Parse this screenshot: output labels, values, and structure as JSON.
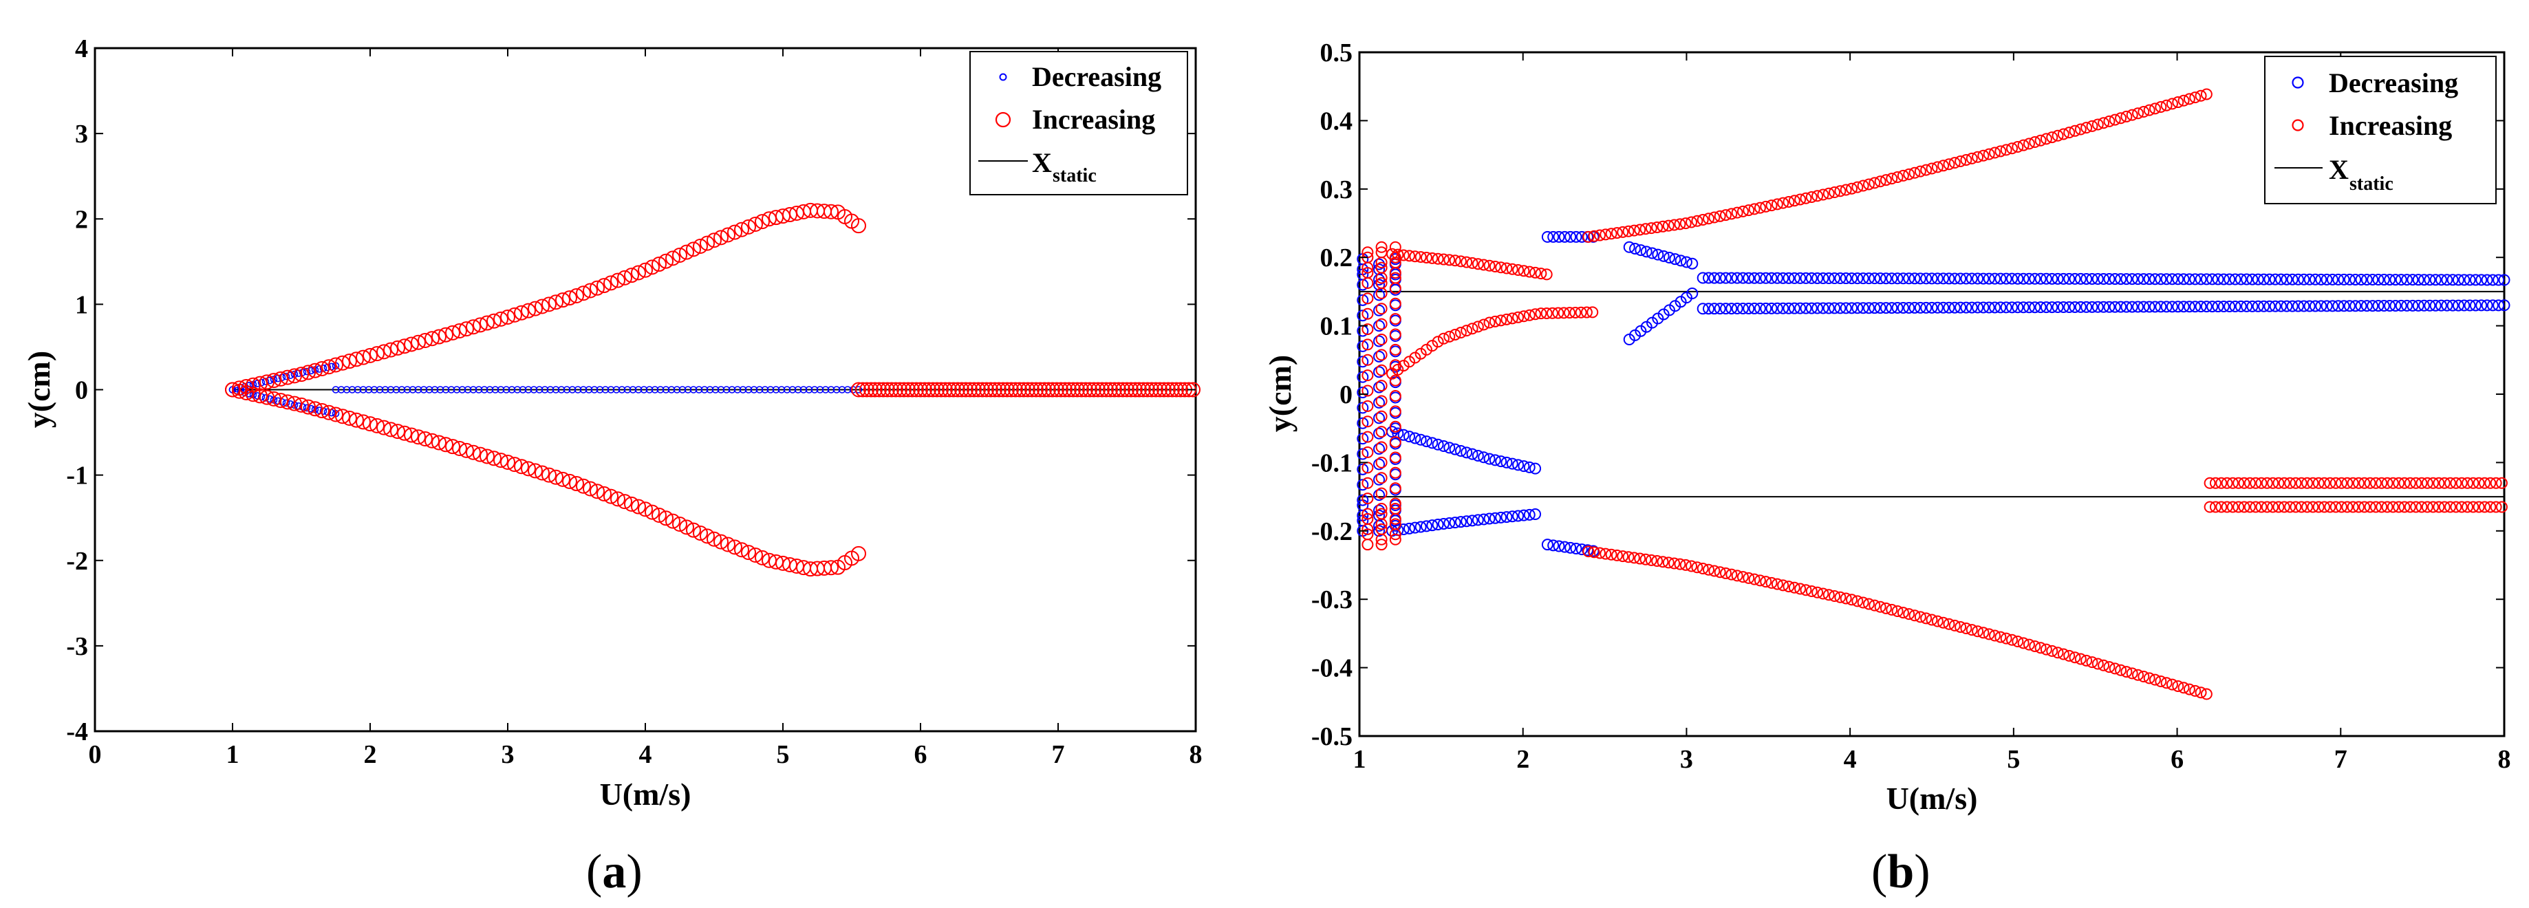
{
  "chart_data": [
    {
      "type": "scatter",
      "caption": "a",
      "xlabel": "U(m/s)",
      "ylabel": "y(cm)",
      "xlim": [
        0,
        8
      ],
      "ylim": [
        -4,
        4
      ],
      "xticks": [
        "0",
        "1",
        "2",
        "3",
        "4",
        "5",
        "6",
        "7",
        "8"
      ],
      "yticks": [
        "-4",
        "-3",
        "-2",
        "-1",
        "0",
        "1",
        "2",
        "3",
        "4"
      ],
      "legend": {
        "position": "top-right",
        "entries": [
          {
            "label": "Decreasing",
            "marker": "small-circle",
            "color": "#0000ff"
          },
          {
            "label": "Increasing",
            "marker": "circle",
            "color": "#ff0000"
          },
          {
            "label": "X",
            "sub": "static",
            "marker": "line",
            "color": "#000000"
          }
        ]
      },
      "series": [
        {
          "name": "Decreasing",
          "color": "#0000ff",
          "branches": [
            {
              "x_start": 1.0,
              "x_end": 1.75,
              "step": 0.03,
              "amplitude_at": [
                [
                  1.0,
                  0.0
                ],
                [
                  1.3,
                  0.12
                ],
                [
                  1.5,
                  0.2
                ],
                [
                  1.75,
                  0.28
                ]
              ],
              "symmetric": true
            },
            {
              "x_start": 1.75,
              "x_end": 5.55,
              "step": 0.04,
              "y_values": [
                0.0,
                0.05,
                -0.05
              ]
            }
          ]
        },
        {
          "name": "Increasing",
          "color": "#ff0000",
          "branches": [
            {
              "x_start": 1.0,
              "x_end": 5.55,
              "step": 0.05,
              "amplitude_at": [
                [
                  1.0,
                  0.0
                ],
                [
                  1.5,
                  0.18
                ],
                [
                  2.0,
                  0.4
                ],
                [
                  2.5,
                  0.62
                ],
                [
                  3.0,
                  0.85
                ],
                [
                  3.5,
                  1.1
                ],
                [
                  4.0,
                  1.4
                ],
                [
                  4.5,
                  1.75
                ],
                [
                  4.9,
                  2.0
                ],
                [
                  5.2,
                  2.1
                ],
                [
                  5.4,
                  2.08
                ],
                [
                  5.55,
                  1.92
                ]
              ],
              "symmetric": true
            },
            {
              "x_start": 5.55,
              "x_end": 8.0,
              "step": 0.03,
              "y_values": [
                0.0
              ]
            }
          ]
        }
      ],
      "reference_line": {
        "name": "X_static",
        "y": 0.0,
        "x_range": [
          1.0,
          8.0
        ],
        "color": "#000000"
      }
    },
    {
      "type": "scatter",
      "caption": "b",
      "xlabel": "U(m/s)",
      "ylabel": "y(cm)",
      "xlim": [
        1,
        8
      ],
      "ylim": [
        -0.5,
        0.5
      ],
      "xticks": [
        "1",
        "2",
        "3",
        "4",
        "5",
        "6",
        "7",
        "8"
      ],
      "yticks": [
        "-0.5",
        "-0.4",
        "-0.3",
        "-0.2",
        "-0.1",
        "0",
        "0.1",
        "0.2",
        "0.3",
        "0.4",
        "0.5"
      ],
      "legend": {
        "position": "top-right",
        "entries": [
          {
            "label": "Decreasing",
            "marker": "circle",
            "color": "#0000ff"
          },
          {
            "label": "Increasing",
            "marker": "circle",
            "color": "#ff0000"
          },
          {
            "label": "X",
            "sub": "static",
            "marker": "line",
            "color": "#000000"
          }
        ]
      },
      "series": [
        {
          "name": "Decreasing",
          "color": "#0000ff",
          "branches": [
            {
              "x_range": [
                1.2,
                2.1
              ],
              "y_points": [
                [
                  1.2,
                  -0.055
                ],
                [
                  1.5,
                  -0.075
                ],
                [
                  1.8,
                  -0.095
                ],
                [
                  2.1,
                  -0.11
                ]
              ]
            },
            {
              "x_range": [
                1.2,
                2.1
              ],
              "y_points": [
                [
                  1.2,
                  -0.2
                ],
                [
                  1.5,
                  -0.19
                ],
                [
                  1.8,
                  -0.182
                ],
                [
                  2.1,
                  -0.175
                ]
              ]
            },
            {
              "x_range": [
                2.15,
                2.45
              ],
              "y_points": [
                [
                  2.15,
                  0.23
                ],
                [
                  2.45,
                  0.23
                ]
              ]
            },
            {
              "x_range": [
                2.15,
                2.45
              ],
              "y_points": [
                [
                  2.15,
                  -0.22
                ],
                [
                  2.45,
                  -0.23
                ]
              ]
            },
            {
              "x_range": [
                2.65,
                3.05
              ],
              "y_points": [
                [
                  2.65,
                  0.215
                ],
                [
                  3.05,
                  0.19
                ]
              ]
            },
            {
              "x_range": [
                2.65,
                3.05
              ],
              "y_points": [
                [
                  2.65,
                  0.08
                ],
                [
                  3.05,
                  0.15
                ]
              ]
            },
            {
              "x_range": [
                3.1,
                8.0
              ],
              "y_points": [
                [
                  3.1,
                  0.17
                ],
                [
                  8.0,
                  0.167
                ]
              ]
            },
            {
              "x_range": [
                3.1,
                8.0
              ],
              "y_points": [
                [
                  3.1,
                  0.125
                ],
                [
                  8.0,
                  0.13
                ]
              ]
            },
            {
              "x_range": [
                1.02,
                1.22
              ],
              "y_points": [
                [
                  1.02,
                  0.2
                ],
                [
                  1.22,
                  -0.2
                ]
              ],
              "cluster": true
            }
          ]
        },
        {
          "name": "Increasing",
          "color": "#ff0000",
          "branches": [
            {
              "x_range": [
                1.2,
                2.15
              ],
              "y_points": [
                [
                  1.2,
                  0.205
                ],
                [
                  1.6,
                  0.195
                ],
                [
                  2.15,
                  0.175
                ]
              ]
            },
            {
              "x_range": [
                1.2,
                2.45
              ],
              "y_points": [
                [
                  1.2,
                  0.03
                ],
                [
                  1.5,
                  0.08
                ],
                [
                  1.8,
                  0.105
                ],
                [
                  2.1,
                  0.118
                ],
                [
                  2.45,
                  0.12
                ]
              ]
            },
            {
              "x_range": [
                2.4,
                6.2
              ],
              "y_points": [
                [
                  2.4,
                  0.23
                ],
                [
                  3.0,
                  0.25
                ],
                [
                  4.0,
                  0.3
                ],
                [
                  5.0,
                  0.36
                ],
                [
                  6.2,
                  0.44
                ]
              ]
            },
            {
              "x_range": [
                2.4,
                6.2
              ],
              "y_points": [
                [
                  2.4,
                  -0.23
                ],
                [
                  3.0,
                  -0.25
                ],
                [
                  4.0,
                  -0.3
                ],
                [
                  5.0,
                  -0.36
                ],
                [
                  6.2,
                  -0.44
                ]
              ]
            },
            {
              "x_range": [
                6.2,
                8.0
              ],
              "y_points": [
                [
                  6.2,
                  -0.13
                ],
                [
                  8.0,
                  -0.13
                ]
              ]
            },
            {
              "x_range": [
                6.2,
                8.0
              ],
              "y_points": [
                [
                  6.2,
                  -0.165
                ],
                [
                  8.0,
                  -0.165
                ]
              ]
            },
            {
              "x_range": [
                1.05,
                1.22
              ],
              "y_points": [
                [
                  1.05,
                  0.22
                ],
                [
                  1.22,
                  -0.22
                ]
              ],
              "cluster": true
            }
          ]
        }
      ],
      "reference_lines": [
        {
          "name": "X_static",
          "y": 0.15,
          "x_range": [
            1.0,
            8.0
          ],
          "color": "#000000"
        },
        {
          "name": "X_static",
          "y": -0.15,
          "x_range": [
            1.0,
            8.0
          ],
          "color": "#000000"
        }
      ]
    }
  ]
}
